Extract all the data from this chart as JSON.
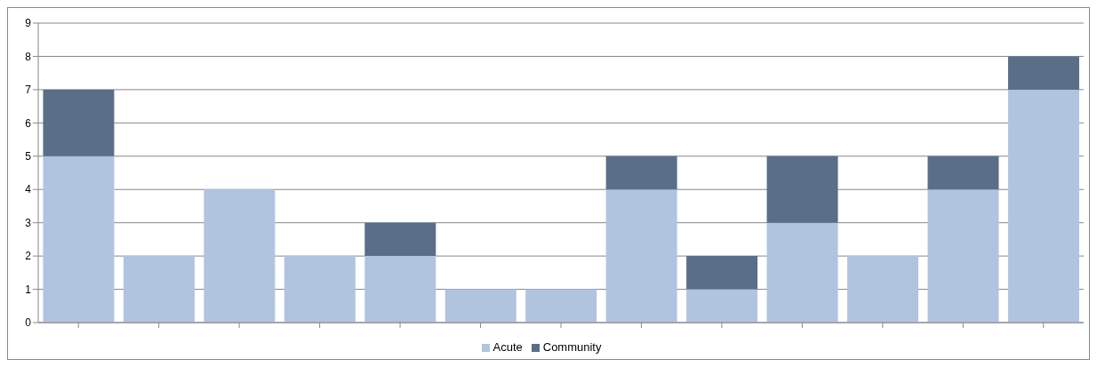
{
  "chart_data": {
    "type": "bar",
    "stacked": true,
    "categories": [
      null,
      null,
      null,
      null,
      null,
      null,
      null,
      null,
      null,
      null,
      null,
      null,
      null
    ],
    "series": [
      {
        "name": "Acute",
        "color": "#b0c4e0",
        "values": [
          5,
          2,
          4,
          2,
          2,
          1,
          1,
          4,
          1,
          3,
          2,
          4,
          7
        ]
      },
      {
        "name": "Community",
        "color": "#5a6e88",
        "values": [
          2,
          0,
          0,
          0,
          1,
          0,
          0,
          1,
          1,
          2,
          0,
          1,
          1
        ]
      }
    ],
    "ylim": [
      0,
      9
    ],
    "yticks": [
      0,
      1,
      2,
      3,
      4,
      5,
      6,
      7,
      8,
      9
    ],
    "grid": "y",
    "legend": "bottom"
  }
}
